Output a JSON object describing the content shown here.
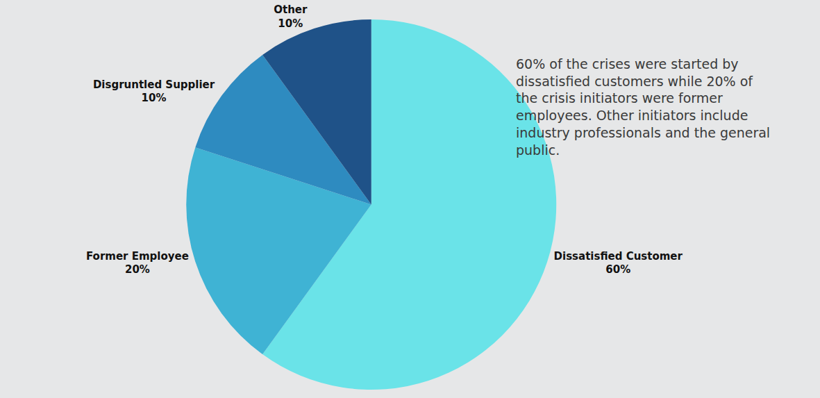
{
  "chart_data": {
    "type": "pie",
    "categories": [
      "Dissatisfied Customer",
      "Former Employee",
      "Disgruntled Supplier",
      "Other"
    ],
    "values": [
      60,
      20,
      10,
      10
    ],
    "value_labels": [
      "60%",
      "20%",
      "10%",
      "10%"
    ],
    "colors": [
      "#6ae3e8",
      "#3fb3d4",
      "#2e8bc0",
      "#1f5288"
    ],
    "data_labels": true,
    "annotations": [
      "60% of the crises were started by dissatisfied customers while 20% of the crisis initiators were former employees. Other initiators include industry professionals and the general public."
    ]
  }
}
